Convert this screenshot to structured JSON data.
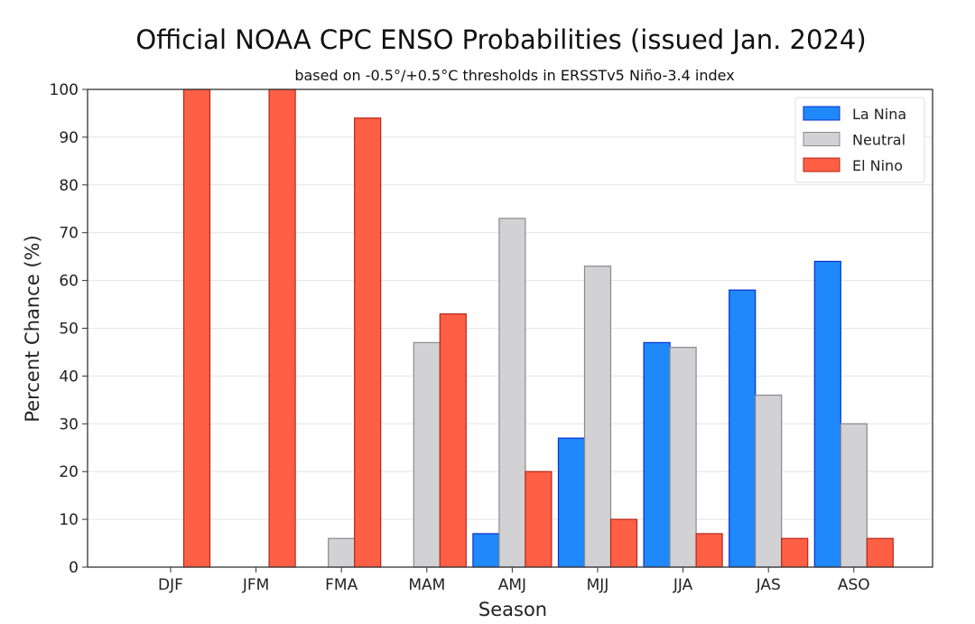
{
  "chart_data": {
    "type": "bar",
    "title": "Official NOAA CPC ENSO Probabilities (issued Jan. 2024)",
    "subtitle": "based on -0.5°/+0.5°C thresholds in ERSSTv5 Niño-3.4 index",
    "xlabel": "Season",
    "ylabel": "Percent Chance (%)",
    "ylim": [
      0,
      100
    ],
    "yticks": [
      0,
      10,
      20,
      30,
      40,
      50,
      60,
      70,
      80,
      90,
      100
    ],
    "grid": true,
    "legend_position": "top-right",
    "categories": [
      "DJF",
      "JFM",
      "FMA",
      "MAM",
      "AMJ",
      "MJJ",
      "JJA",
      "JAS",
      "ASO"
    ],
    "series": [
      {
        "name": "La Nina",
        "color": "#1f88fb",
        "edge": "#0a2fd0",
        "values": [
          0,
          0,
          0,
          0,
          7,
          27,
          47,
          58,
          64
        ]
      },
      {
        "name": "Neutral",
        "color": "#d2d2d4",
        "edge": "#8a8a8a",
        "values": [
          0,
          0,
          6,
          47,
          73,
          63,
          46,
          36,
          30
        ]
      },
      {
        "name": "El Nino",
        "color": "#fe5f45",
        "edge": "#b52618",
        "values": [
          100,
          100,
          94,
          53,
          20,
          10,
          7,
          6,
          6
        ]
      }
    ]
  }
}
